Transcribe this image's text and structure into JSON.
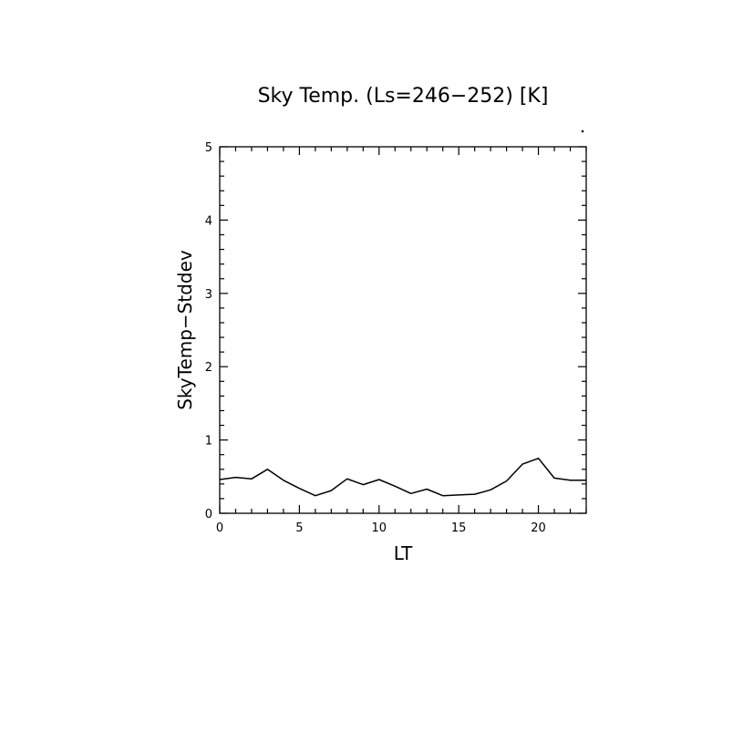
{
  "chart_data": {
    "type": "line",
    "title": "Sky Temp. (Ls=246−252) [K]",
    "xlabel": "LT",
    "ylabel": "SkyTemp−Stddev",
    "xlim": [
      0,
      23
    ],
    "ylim": [
      0,
      5
    ],
    "xticks": [
      0,
      5,
      10,
      15,
      20
    ],
    "yticks": [
      0,
      1,
      2,
      3,
      4,
      5
    ],
    "grid": false,
    "series": [
      {
        "x": [
          0,
          1,
          2,
          3,
          4,
          5,
          6,
          7,
          8,
          9,
          10,
          11,
          12,
          13,
          14,
          15,
          16,
          17,
          18,
          19,
          20,
          21,
          22,
          23
        ],
        "values": [
          0.46,
          0.49,
          0.47,
          0.6,
          0.45,
          0.34,
          0.24,
          0.31,
          0.47,
          0.39,
          0.46,
          0.37,
          0.27,
          0.33,
          0.24,
          0.25,
          0.26,
          0.32,
          0.44,
          0.67,
          0.75,
          0.48,
          0.45,
          0.45
        ]
      }
    ]
  }
}
